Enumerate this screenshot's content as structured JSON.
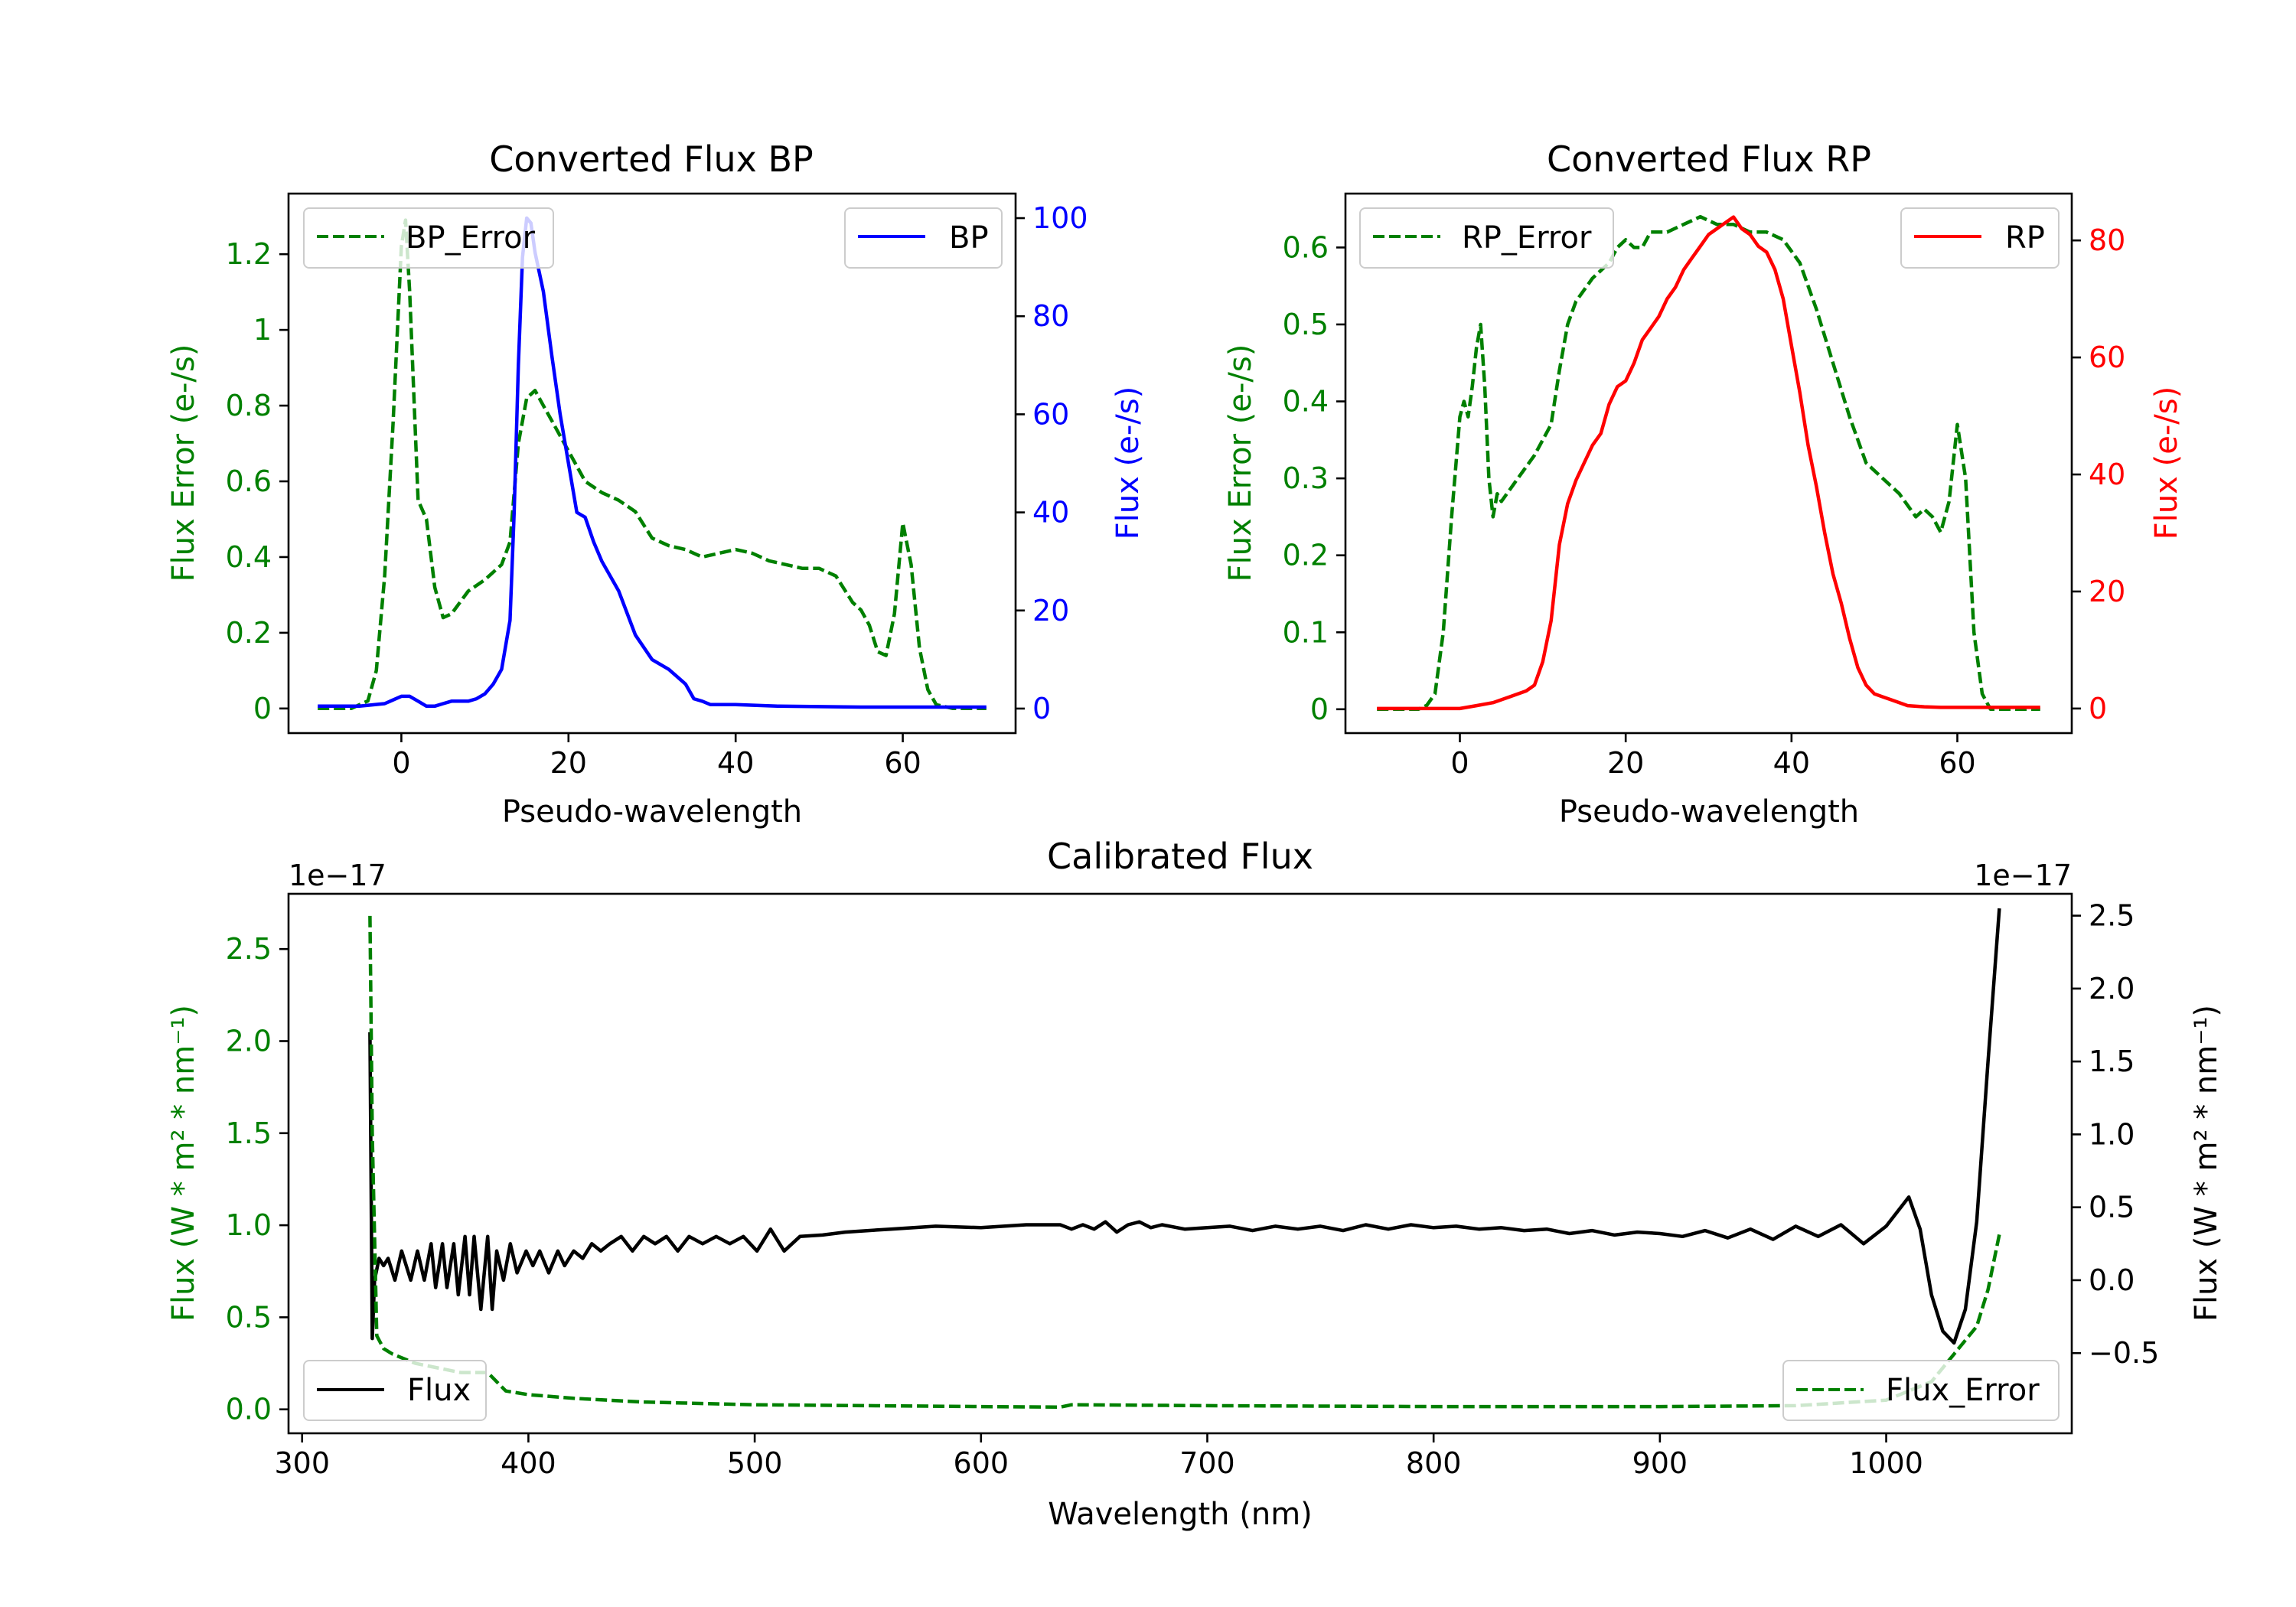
{
  "chart_data": [
    {
      "id": "bp",
      "type": "line",
      "title": "Converted Flux BP",
      "xlabel": "Pseudo-wavelength",
      "ylabel_left": "Flux Error (e-/s)",
      "ylabel_right": "Flux (e-/s)",
      "xlim": [
        -13.5,
        73.5
      ],
      "ylim_left": [
        -0.065,
        1.36
      ],
      "ylim_right": [
        -5,
        105
      ],
      "xticks": [
        0,
        20,
        40,
        60
      ],
      "yticks_left": [
        0.0,
        0.2,
        0.4,
        0.6,
        0.8,
        1.0,
        1.2
      ],
      "yticks_right": [
        0,
        20,
        40,
        60,
        80,
        100
      ],
      "series": [
        {
          "name": "BP_Error",
          "axis": "left",
          "color": "#008000",
          "style": "dashed",
          "legend": "top-left",
          "x": [
            -10,
            -6,
            -4,
            -3,
            -2,
            -1,
            0,
            0.5,
            1,
            2,
            3,
            4,
            5,
            6,
            7,
            8,
            10,
            12,
            13,
            14,
            15,
            16,
            17,
            18,
            19,
            20,
            22,
            24,
            26,
            28,
            30,
            32,
            34,
            36,
            38,
            40,
            42,
            44,
            46,
            48,
            50,
            52,
            54,
            55,
            56,
            57,
            58,
            59,
            60,
            61,
            62,
            63,
            64,
            66,
            70
          ],
          "values": [
            0.0,
            0.0,
            0.02,
            0.1,
            0.35,
            0.75,
            1.22,
            1.29,
            1.1,
            0.55,
            0.5,
            0.32,
            0.24,
            0.25,
            0.28,
            0.31,
            0.34,
            0.38,
            0.44,
            0.7,
            0.82,
            0.84,
            0.8,
            0.76,
            0.72,
            0.68,
            0.6,
            0.57,
            0.55,
            0.52,
            0.45,
            0.43,
            0.42,
            0.4,
            0.41,
            0.42,
            0.41,
            0.39,
            0.38,
            0.37,
            0.37,
            0.35,
            0.28,
            0.26,
            0.22,
            0.15,
            0.14,
            0.25,
            0.49,
            0.38,
            0.16,
            0.05,
            0.01,
            0.0,
            0.0
          ]
        },
        {
          "name": "BP",
          "axis": "right",
          "color": "#0000ff",
          "style": "solid",
          "legend": "top-right",
          "x": [
            -10,
            -5,
            -2,
            0,
            1,
            2,
            3,
            4,
            5,
            6,
            7,
            8,
            9,
            10,
            11,
            12,
            13,
            13.5,
            14,
            14.5,
            15,
            15.5,
            16,
            17,
            18,
            19,
            20,
            21,
            22,
            23,
            24,
            26,
            28,
            30,
            32,
            34,
            35,
            36,
            37,
            40,
            45,
            50,
            55,
            60,
            65,
            70
          ],
          "values": [
            0.5,
            0.5,
            1,
            2.5,
            2.5,
            1.5,
            0.5,
            0.5,
            1,
            1.5,
            1.5,
            1.5,
            2,
            3,
            5,
            8,
            18,
            40,
            70,
            92,
            100,
            99,
            93,
            85,
            72,
            60,
            50,
            40,
            39,
            34,
            30,
            24,
            15,
            10,
            8,
            5,
            2,
            1.5,
            0.8,
            0.8,
            0.5,
            0.4,
            0.3,
            0.3,
            0.3,
            0.3
          ]
        }
      ]
    },
    {
      "id": "rp",
      "type": "line",
      "title": "Converted Flux RP",
      "xlabel": "Pseudo-wavelength",
      "ylabel_left": "Flux Error (e-/s)",
      "ylabel_right": "Flux (e-/s)",
      "xlim": [
        -13.8,
        73.8
      ],
      "ylim_left": [
        -0.031,
        0.67
      ],
      "ylim_right": [
        -4.2,
        88
      ],
      "xticks": [
        0,
        20,
        40,
        60
      ],
      "yticks_left": [
        0.0,
        0.1,
        0.2,
        0.3,
        0.4,
        0.5,
        0.6
      ],
      "yticks_right": [
        0,
        20,
        40,
        60,
        80
      ],
      "series": [
        {
          "name": "RP_Error",
          "axis": "left",
          "color": "#008000",
          "style": "dashed",
          "legend": "top-left",
          "x": [
            -10,
            -5,
            -4,
            -3,
            -2,
            -1,
            0,
            0.5,
            1,
            1.5,
            2,
            2.5,
            3,
            3.5,
            4,
            4.5,
            5,
            7,
            9,
            11,
            12,
            13,
            14,
            16,
            18,
            19,
            20,
            21,
            22,
            23,
            25,
            27,
            29,
            31,
            33,
            35,
            37,
            39,
            41,
            43,
            45,
            47,
            49,
            51,
            53,
            55,
            56,
            57,
            58,
            59,
            60,
            61,
            62,
            63,
            64,
            66,
            70
          ],
          "values": [
            0.0,
            0.0,
            0.005,
            0.02,
            0.1,
            0.25,
            0.38,
            0.4,
            0.38,
            0.42,
            0.47,
            0.5,
            0.42,
            0.3,
            0.25,
            0.28,
            0.27,
            0.3,
            0.33,
            0.37,
            0.44,
            0.5,
            0.53,
            0.56,
            0.58,
            0.6,
            0.61,
            0.6,
            0.6,
            0.62,
            0.62,
            0.63,
            0.64,
            0.63,
            0.63,
            0.62,
            0.62,
            0.61,
            0.58,
            0.52,
            0.45,
            0.38,
            0.32,
            0.3,
            0.28,
            0.25,
            0.26,
            0.25,
            0.23,
            0.27,
            0.37,
            0.3,
            0.1,
            0.02,
            0.0,
            0.0,
            0.0
          ]
        },
        {
          "name": "RP",
          "axis": "right",
          "color": "#ff0000",
          "style": "solid",
          "legend": "top-right",
          "x": [
            -10,
            -5,
            0,
            2,
            4,
            6,
            8,
            9,
            10,
            11,
            12,
            13,
            14,
            15,
            16,
            17,
            18,
            19,
            20,
            21,
            22,
            23,
            24,
            25,
            26,
            27,
            28,
            29,
            30,
            31,
            32,
            33,
            34,
            35,
            36,
            37,
            38,
            39,
            40,
            41,
            42,
            43,
            44,
            45,
            46,
            47,
            48,
            49,
            50,
            51,
            52,
            53,
            54,
            56,
            58,
            60,
            62,
            64,
            66,
            70
          ],
          "values": [
            0,
            0,
            0,
            0.5,
            1,
            2,
            3,
            4,
            8,
            15,
            28,
            35,
            39,
            42,
            45,
            47,
            52,
            55,
            56,
            59,
            63,
            65,
            67,
            70,
            72,
            75,
            77,
            79,
            81,
            82,
            83,
            84,
            82,
            81,
            79,
            78,
            75,
            70,
            62,
            54,
            45,
            38,
            30,
            23,
            18,
            12,
            7,
            4,
            2.5,
            2,
            1.5,
            1,
            0.5,
            0.3,
            0.2,
            0.2,
            0.2,
            0.2,
            0.2,
            0.2
          ]
        }
      ]
    },
    {
      "id": "calibrated",
      "type": "line",
      "title": "Calibrated Flux",
      "xlabel": "Wavelength (nm)",
      "ylabel_left": "Flux (W * m² * nm⁻¹)",
      "ylabel_right": "Flux (W * m² * nm⁻¹)",
      "offset_left": "1e−17",
      "offset_right": "1e−17",
      "xlim": [
        294,
        1082
      ],
      "ylim_left": [
        -0.13,
        2.8
      ],
      "ylim_right": [
        -1.05,
        2.65
      ],
      "xticks": [
        300,
        400,
        500,
        600,
        700,
        800,
        900,
        1000
      ],
      "yticks_left": [
        "0.0",
        "0.5",
        "1.0",
        "1.5",
        "2.0",
        "2.5"
      ],
      "yticks_right": [
        "−0.5",
        "0.0",
        "0.5",
        "1.0",
        "1.5",
        "2.0",
        "2.5"
      ],
      "series": [
        {
          "name": "Flux",
          "axis": "right",
          "color": "#000000",
          "style": "solid",
          "legend": "bottom-left",
          "x": [
            330,
            331,
            332,
            334,
            336,
            338,
            341,
            344,
            348,
            351,
            354,
            357,
            359,
            362,
            364,
            367,
            369,
            372,
            374,
            376,
            379,
            382,
            384,
            386,
            389,
            392,
            395,
            399,
            402,
            405,
            409,
            413,
            416,
            420,
            424,
            428,
            432,
            436,
            441,
            446,
            451,
            456,
            461,
            466,
            471,
            477,
            483,
            489,
            495,
            501,
            507,
            513,
            520,
            530,
            540,
            560,
            580,
            600,
            620,
            635,
            640,
            645,
            650,
            655,
            660,
            665,
            670,
            675,
            680,
            690,
            700,
            710,
            720,
            730,
            740,
            750,
            760,
            770,
            780,
            790,
            800,
            810,
            820,
            830,
            840,
            850,
            860,
            870,
            880,
            890,
            900,
            910,
            920,
            930,
            940,
            950,
            960,
            970,
            980,
            990,
            1000,
            1010,
            1015,
            1020,
            1025,
            1030,
            1035,
            1040,
            1045,
            1050
          ],
          "values": [
            1.7,
            -0.4,
            0.0,
            0.15,
            0.1,
            0.15,
            0.0,
            0.2,
            0.0,
            0.2,
            0.0,
            0.25,
            -0.05,
            0.25,
            -0.05,
            0.25,
            -0.1,
            0.3,
            -0.1,
            0.3,
            -0.2,
            0.3,
            -0.2,
            0.2,
            0.0,
            0.25,
            0.05,
            0.2,
            0.1,
            0.2,
            0.05,
            0.2,
            0.1,
            0.2,
            0.15,
            0.25,
            0.2,
            0.25,
            0.3,
            0.2,
            0.3,
            0.25,
            0.3,
            0.2,
            0.3,
            0.25,
            0.3,
            0.25,
            0.3,
            0.2,
            0.35,
            0.2,
            0.3,
            0.31,
            0.33,
            0.35,
            0.37,
            0.36,
            0.38,
            0.38,
            0.35,
            0.38,
            0.35,
            0.4,
            0.33,
            0.38,
            0.4,
            0.36,
            0.38,
            0.35,
            0.36,
            0.37,
            0.34,
            0.37,
            0.35,
            0.37,
            0.34,
            0.38,
            0.35,
            0.38,
            0.36,
            0.37,
            0.35,
            0.36,
            0.34,
            0.35,
            0.32,
            0.34,
            0.31,
            0.33,
            0.32,
            0.3,
            0.34,
            0.29,
            0.35,
            0.28,
            0.37,
            0.3,
            0.38,
            0.25,
            0.37,
            0.57,
            0.35,
            -0.1,
            -0.35,
            -0.43,
            -0.2,
            0.4,
            1.5,
            2.55
          ]
        },
        {
          "name": "Flux_Error",
          "axis": "left",
          "color": "#008000",
          "style": "dashed",
          "legend": "bottom-right",
          "x": [
            330,
            331,
            333,
            336,
            340,
            350,
            370,
            382,
            390,
            400,
            420,
            450,
            500,
            550,
            600,
            635,
            640,
            700,
            800,
            900,
            960,
            1000,
            1020,
            1030,
            1040,
            1045,
            1050
          ],
          "values": [
            2.68,
            1.5,
            0.4,
            0.33,
            0.3,
            0.25,
            0.2,
            0.2,
            0.1,
            0.08,
            0.06,
            0.04,
            0.025,
            0.02,
            0.015,
            0.012,
            0.025,
            0.02,
            0.015,
            0.015,
            0.02,
            0.05,
            0.15,
            0.3,
            0.45,
            0.65,
            0.95
          ]
        }
      ]
    }
  ]
}
